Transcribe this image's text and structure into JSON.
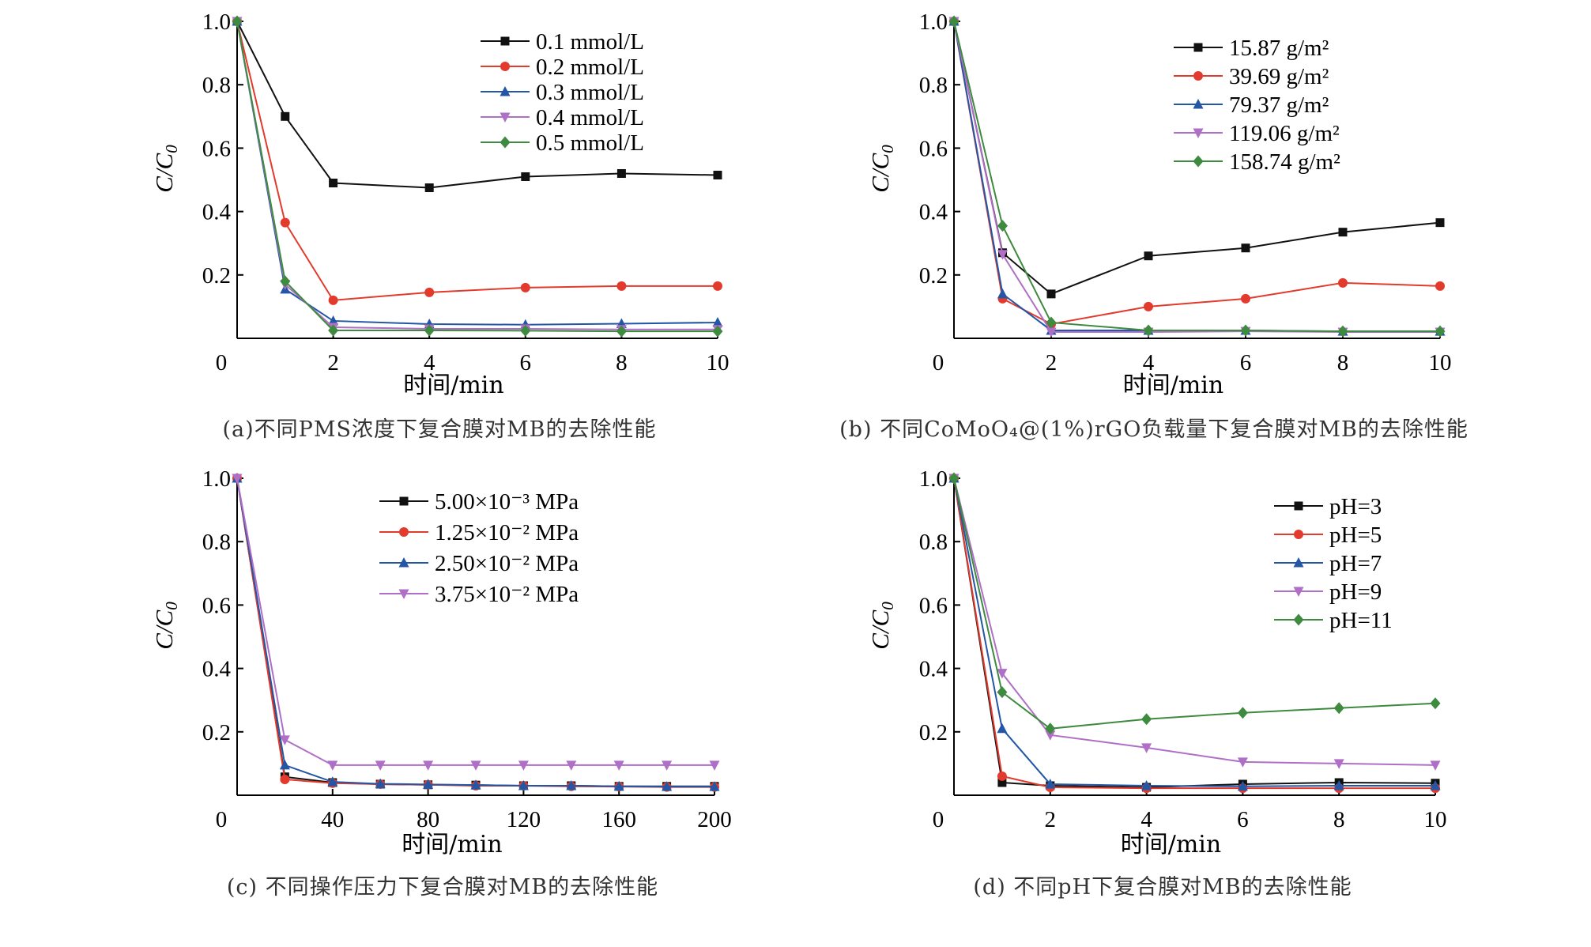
{
  "colors": {
    "black": "#111111",
    "red": "#e23a2c",
    "blue": "#2456a6",
    "purple": "#b06fc6",
    "green": "#3e8a3e"
  },
  "chart_data": [
    {
      "type": "line",
      "panel": "a",
      "xlabel": "时间/min",
      "ylabel_main": "C/C",
      "ylabel_sub": "0",
      "caption": "(a)不同PMS浓度下复合膜对MB的去除性能",
      "x_display": [
        0,
        1,
        2,
        4,
        6,
        8,
        10
      ],
      "x_ticks": [
        "0",
        "2",
        "4",
        "6",
        "8",
        "10"
      ],
      "y_ticks": [
        "1.0",
        "0.8",
        "0.6",
        "0.4",
        "0.2"
      ],
      "ylim": [
        0,
        1.0
      ],
      "series": [
        {
          "name": "0.1 mmol/L",
          "color": "black",
          "marker": "square",
          "values": [
            1.0,
            0.7,
            0.49,
            0.475,
            0.51,
            0.52,
            0.515
          ]
        },
        {
          "name": "0.2 mmol/L",
          "color": "red",
          "marker": "circle",
          "values": [
            1.0,
            0.365,
            0.12,
            0.145,
            0.16,
            0.165,
            0.165
          ]
        },
        {
          "name": "0.3 mmol/L",
          "color": "blue",
          "marker": "triangle-up",
          "values": [
            1.0,
            0.155,
            0.055,
            0.045,
            0.043,
            0.046,
            0.05
          ]
        },
        {
          "name": "0.4 mmol/L",
          "color": "purple",
          "marker": "triangle-down",
          "values": [
            1.0,
            0.17,
            0.035,
            0.03,
            0.03,
            0.028,
            0.028
          ]
        },
        {
          "name": "0.5 mmol/L",
          "color": "green",
          "marker": "diamond",
          "values": [
            1.0,
            0.18,
            0.025,
            0.025,
            0.024,
            0.022,
            0.022
          ]
        }
      ]
    },
    {
      "type": "line",
      "panel": "b",
      "xlabel": "时间/min",
      "ylabel_main": "C/C",
      "ylabel_sub": "0",
      "caption": "(b) 不同CoMoO₄@(1%)rGO负载量下复合膜对MB的去除性能",
      "x_display": [
        0,
        1,
        2,
        4,
        6,
        8,
        10
      ],
      "x_ticks": [
        "0",
        "2",
        "4",
        "6",
        "8",
        "10"
      ],
      "y_ticks": [
        "1.0",
        "0.8",
        "0.6",
        "0.4",
        "0.2"
      ],
      "ylim": [
        0,
        1.0
      ],
      "series": [
        {
          "name": "15.87 g/m²",
          "color": "black",
          "marker": "square",
          "values": [
            1.0,
            0.27,
            0.14,
            0.26,
            0.285,
            0.335,
            0.365
          ]
        },
        {
          "name": "39.69 g/m²",
          "color": "red",
          "marker": "circle",
          "values": [
            1.0,
            0.125,
            0.045,
            0.1,
            0.125,
            0.175,
            0.165
          ]
        },
        {
          "name": "79.37 g/m²",
          "color": "blue",
          "marker": "triangle-up",
          "values": [
            1.0,
            0.14,
            0.025,
            0.025,
            0.025,
            0.022,
            0.022
          ]
        },
        {
          "name": "119.06 g/m²",
          "color": "purple",
          "marker": "triangle-down",
          "values": [
            1.0,
            0.265,
            0.02,
            0.02,
            0.022,
            0.02,
            0.02
          ]
        },
        {
          "name": "158.74 g/m²",
          "color": "green",
          "marker": "diamond",
          "values": [
            1.0,
            0.355,
            0.05,
            0.025,
            0.025,
            0.022,
            0.022
          ]
        }
      ]
    },
    {
      "type": "line",
      "panel": "c",
      "xlabel": "时间/min",
      "ylabel_main": "C/C",
      "ylabel_sub": "0",
      "caption": "(c) 不同操作压力下复合膜对MB的去除性能",
      "x_display": [
        0,
        20,
        40,
        60,
        80,
        100,
        120,
        140,
        160,
        180,
        200
      ],
      "x_ticks": [
        "0",
        "40",
        "80",
        "120",
        "160",
        "200"
      ],
      "y_ticks": [
        "1.0",
        "0.8",
        "0.6",
        "0.4",
        "0.2"
      ],
      "ylim": [
        0,
        1.0
      ],
      "series": [
        {
          "name": "5.00×10⁻³ MPa",
          "color": "black",
          "marker": "square",
          "values": [
            1.0,
            0.058,
            0.04,
            0.035,
            0.033,
            0.032,
            0.03,
            0.03,
            0.028,
            0.028,
            0.028
          ]
        },
        {
          "name": "1.25×10⁻² MPa",
          "color": "red",
          "marker": "circle",
          "values": [
            1.0,
            0.05,
            0.038,
            0.035,
            0.033,
            0.03,
            0.03,
            0.028,
            0.027,
            0.026,
            0.026
          ]
        },
        {
          "name": "2.50×10⁻² MPa",
          "color": "blue",
          "marker": "triangle-up",
          "values": [
            1.0,
            0.095,
            0.042,
            0.036,
            0.034,
            0.032,
            0.03,
            0.03,
            0.028,
            0.027,
            0.027
          ]
        },
        {
          "name": "3.75×10⁻² MPa",
          "color": "purple",
          "marker": "triangle-down",
          "values": [
            1.0,
            0.175,
            0.095,
            0.095,
            0.095,
            0.095,
            0.095,
            0.095,
            0.095,
            0.095,
            0.095
          ]
        }
      ]
    },
    {
      "type": "line",
      "panel": "d",
      "xlabel": "时间/min",
      "ylabel_main": "C/C",
      "ylabel_sub": "0",
      "caption": "(d) 不同pH下复合膜对MB的去除性能",
      "x_display": [
        0,
        1,
        2,
        4,
        6,
        8,
        10
      ],
      "x_ticks": [
        "0",
        "2",
        "4",
        "6",
        "8",
        "10"
      ],
      "y_ticks": [
        "1.0",
        "0.8",
        "0.6",
        "0.4",
        "0.2"
      ],
      "ylim": [
        0,
        1.0
      ],
      "series": [
        {
          "name": "pH=3",
          "color": "black",
          "marker": "square",
          "values": [
            1.0,
            0.04,
            0.03,
            0.025,
            0.035,
            0.04,
            0.038
          ]
        },
        {
          "name": "pH=5",
          "color": "red",
          "marker": "circle",
          "values": [
            1.0,
            0.06,
            0.025,
            0.022,
            0.022,
            0.022,
            0.022
          ]
        },
        {
          "name": "pH=7",
          "color": "blue",
          "marker": "triangle-up",
          "values": [
            1.0,
            0.21,
            0.035,
            0.03,
            0.028,
            0.03,
            0.03
          ]
        },
        {
          "name": "pH=9",
          "color": "purple",
          "marker": "triangle-down",
          "values": [
            1.0,
            0.385,
            0.19,
            0.15,
            0.105,
            0.1,
            0.095
          ]
        },
        {
          "name": "pH=11",
          "color": "green",
          "marker": "diamond",
          "values": [
            1.0,
            0.325,
            0.21,
            0.24,
            0.26,
            0.275,
            0.29
          ]
        }
      ]
    }
  ]
}
